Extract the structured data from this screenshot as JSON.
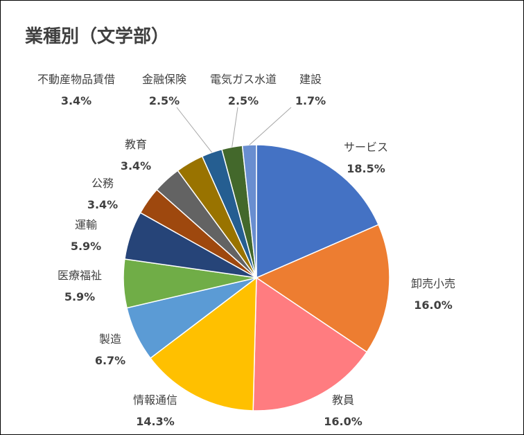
{
  "chart_data": {
    "type": "pie",
    "title": "業種別（文学部）",
    "start_angle_deg": 0,
    "direction": "clockwise",
    "legend": "none",
    "slices": [
      {
        "label": "サービス",
        "value": 18.5,
        "display": "18.5%",
        "color": "#4472C4"
      },
      {
        "label": "卸売小売",
        "value": 16.0,
        "display": "16.0%",
        "color": "#ED7D31"
      },
      {
        "label": "教員",
        "value": 16.0,
        "display": "16.0%",
        "color": "#FF7C80"
      },
      {
        "label": "情報通信",
        "value": 14.3,
        "display": "14.3%",
        "color": "#FFC000"
      },
      {
        "label": "製造",
        "value": 6.7,
        "display": "6.7%",
        "color": "#5B9BD5"
      },
      {
        "label": "医療福祉",
        "value": 5.9,
        "display": "5.9%",
        "color": "#70AD47"
      },
      {
        "label": "運輸",
        "value": 5.9,
        "display": "5.9%",
        "color": "#264478"
      },
      {
        "label": "公務",
        "value": 3.4,
        "display": "3.4%",
        "color": "#9E480E"
      },
      {
        "label": "教育",
        "value": 3.4,
        "display": "3.4%",
        "color": "#636363"
      },
      {
        "label": "不動産物品賃借",
        "value": 3.4,
        "display": "3.4%",
        "color": "#997300"
      },
      {
        "label": "金融保険",
        "value": 2.5,
        "display": "2.5%",
        "color": "#255E91"
      },
      {
        "label": "電気ガス水道",
        "value": 2.5,
        "display": "2.5%",
        "color": "#43682B"
      },
      {
        "label": "建設",
        "value": 1.7,
        "display": "1.7%",
        "color": "#698ED0"
      }
    ]
  }
}
